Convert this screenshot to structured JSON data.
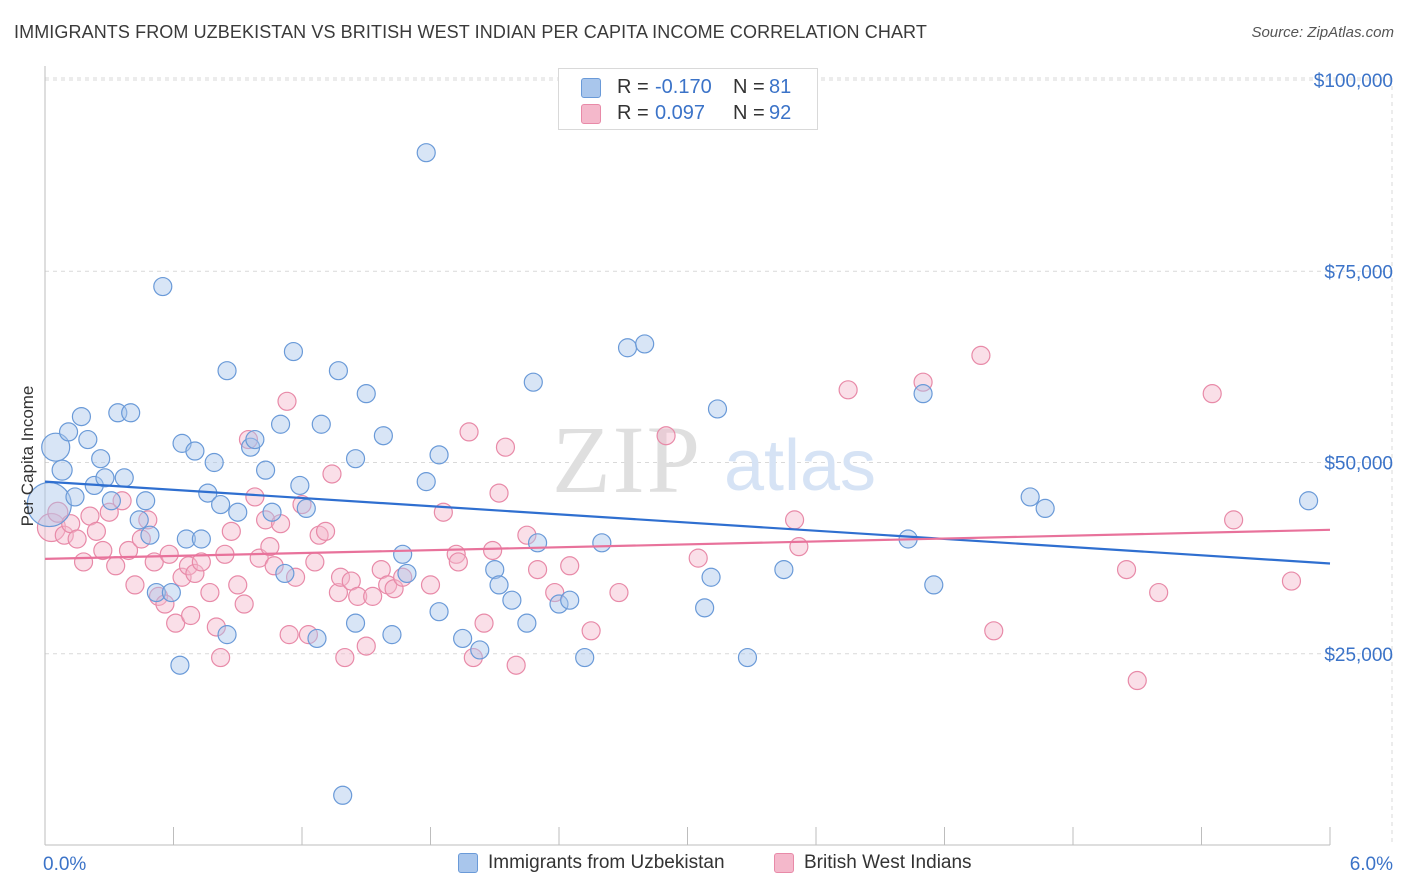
{
  "title": "IMMIGRANTS FROM UZBEKISTAN VS BRITISH WEST INDIAN PER CAPITA INCOME CORRELATION CHART",
  "source": "Source: ZipAtlas.com",
  "watermark": {
    "zip": "ZIP",
    "atlas": "atlas"
  },
  "legend": {
    "series1": {
      "r_label": "R =",
      "r_value": "-0.170",
      "n_label": "N =",
      "n_value": "81"
    },
    "series2": {
      "r_label": "R =",
      "r_value": "0.097",
      "n_label": "N =",
      "n_value": "92"
    }
  },
  "bottom_legend": {
    "series1": "Immigrants from Uzbekistan",
    "series2": "British West Indians"
  },
  "colors": {
    "blue_fill": "#a9c6ec",
    "blue_stroke": "#6a9ad8",
    "blue_line": "#2f6fd0",
    "pink_fill": "#f4b8cb",
    "pink_stroke": "#e88aa8",
    "pink_line": "#e8729b",
    "axis_text": "#3b73c8",
    "grid": "#d9d9d9"
  },
  "chart_data": {
    "type": "scatter",
    "title": "IMMIGRANTS FROM UZBEKISTAN VS BRITISH WEST INDIAN PER CAPITA INCOME CORRELATION CHART",
    "xlabel": "",
    "ylabel": "Per Capita Income",
    "xlim": [
      0,
      6
    ],
    "ylim": [
      0,
      102000
    ],
    "x_tick_labels": [
      "0.0%",
      "6.0%"
    ],
    "y_ticks": [
      25000,
      50000,
      75000,
      100000
    ],
    "y_tick_labels": [
      "$25,000",
      "$50,000",
      "$75,000",
      "$100,000"
    ],
    "series": [
      {
        "name": "Immigrants from Uzbekistan",
        "color": "blue",
        "trend": {
          "x": [
            0,
            6
          ],
          "y": [
            47500,
            36800
          ]
        },
        "points": [
          [
            0.02,
            44500,
            22
          ],
          [
            0.05,
            52000,
            14
          ],
          [
            0.08,
            49000,
            10
          ],
          [
            0.11,
            54000,
            9
          ],
          [
            0.14,
            45500,
            9
          ],
          [
            0.17,
            56000,
            9
          ],
          [
            0.2,
            53000,
            9
          ],
          [
            0.23,
            47000,
            9
          ],
          [
            0.26,
            50500,
            9
          ],
          [
            0.28,
            48000,
            9
          ],
          [
            0.31,
            45000,
            9
          ],
          [
            0.34,
            56500,
            9
          ],
          [
            0.37,
            48000,
            9
          ],
          [
            0.4,
            56500,
            9
          ],
          [
            0.44,
            42500,
            9
          ],
          [
            0.47,
            45000,
            9
          ],
          [
            0.49,
            40500,
            9
          ],
          [
            0.52,
            33000,
            9
          ],
          [
            0.55,
            73000,
            9
          ],
          [
            0.59,
            33000,
            9
          ],
          [
            0.63,
            23500,
            9
          ],
          [
            0.64,
            52500,
            9
          ],
          [
            0.66,
            40000,
            9
          ],
          [
            0.7,
            51500,
            9
          ],
          [
            0.73,
            40000,
            9
          ],
          [
            0.76,
            46000,
            9
          ],
          [
            0.79,
            50000,
            9
          ],
          [
            0.82,
            44500,
            9
          ],
          [
            0.85,
            27500,
            9
          ],
          [
            0.85,
            62000,
            9
          ],
          [
            0.9,
            43500,
            9
          ],
          [
            0.96,
            52000,
            9
          ],
          [
            0.98,
            53000,
            9
          ],
          [
            1.03,
            49000,
            9
          ],
          [
            1.06,
            43500,
            9
          ],
          [
            1.1,
            55000,
            9
          ],
          [
            1.12,
            35500,
            9
          ],
          [
            1.16,
            64500,
            9
          ],
          [
            1.19,
            47000,
            9
          ],
          [
            1.22,
            44000,
            9
          ],
          [
            1.27,
            27000,
            9
          ],
          [
            1.29,
            55000,
            9
          ],
          [
            1.37,
            62000,
            9
          ],
          [
            1.39,
            6500,
            9
          ],
          [
            1.45,
            29000,
            9
          ],
          [
            1.45,
            50500,
            9
          ],
          [
            1.5,
            59000,
            9
          ],
          [
            1.58,
            53500,
            9
          ],
          [
            1.62,
            27500,
            9
          ],
          [
            1.67,
            38000,
            9
          ],
          [
            1.69,
            35500,
            9
          ],
          [
            1.78,
            47500,
            9
          ],
          [
            1.78,
            90500,
            9
          ],
          [
            1.84,
            51000,
            9
          ],
          [
            1.84,
            30500,
            9
          ],
          [
            1.95,
            27000,
            9
          ],
          [
            2.03,
            25500,
            9
          ],
          [
            2.1,
            36000,
            9
          ],
          [
            2.12,
            34000,
            9
          ],
          [
            2.18,
            32000,
            9
          ],
          [
            2.25,
            29000,
            9
          ],
          [
            2.28,
            60500,
            9
          ],
          [
            2.3,
            39500,
            9
          ],
          [
            2.4,
            31500,
            9
          ],
          [
            2.45,
            32000,
            9
          ],
          [
            2.52,
            24500,
            9
          ],
          [
            2.6,
            39500,
            9
          ],
          [
            2.72,
            65000,
            9
          ],
          [
            2.8,
            65500,
            9
          ],
          [
            3.08,
            31000,
            9
          ],
          [
            3.11,
            35000,
            9
          ],
          [
            3.14,
            57000,
            9
          ],
          [
            3.28,
            24500,
            9
          ],
          [
            3.45,
            36000,
            9
          ],
          [
            4.03,
            40000,
            9
          ],
          [
            4.1,
            59000,
            9
          ],
          [
            4.15,
            34000,
            9
          ],
          [
            4.6,
            45500,
            9
          ],
          [
            4.67,
            44000,
            9
          ],
          [
            5.9,
            45000,
            9
          ]
        ]
      },
      {
        "name": "British West Indians",
        "color": "pink",
        "trend": {
          "x": [
            0,
            6
          ],
          "y": [
            37400,
            41200
          ]
        },
        "points": [
          [
            0.03,
            41500,
            14
          ],
          [
            0.06,
            43500,
            10
          ],
          [
            0.09,
            40500,
            9
          ],
          [
            0.12,
            42000,
            9
          ],
          [
            0.15,
            40000,
            9
          ],
          [
            0.18,
            37000,
            9
          ],
          [
            0.21,
            43000,
            9
          ],
          [
            0.24,
            41000,
            9
          ],
          [
            0.27,
            38500,
            9
          ],
          [
            0.3,
            43500,
            9
          ],
          [
            0.33,
            36500,
            9
          ],
          [
            0.36,
            45000,
            9
          ],
          [
            0.39,
            38500,
            9
          ],
          [
            0.42,
            34000,
            9
          ],
          [
            0.45,
            40000,
            9
          ],
          [
            0.48,
            42500,
            9
          ],
          [
            0.51,
            37000,
            9
          ],
          [
            0.53,
            32500,
            9
          ],
          [
            0.56,
            31500,
            9
          ],
          [
            0.58,
            38000,
            9
          ],
          [
            0.61,
            29000,
            9
          ],
          [
            0.64,
            35000,
            9
          ],
          [
            0.67,
            36500,
            9
          ],
          [
            0.68,
            30000,
            9
          ],
          [
            0.7,
            35500,
            9
          ],
          [
            0.73,
            37000,
            9
          ],
          [
            0.77,
            33000,
            9
          ],
          [
            0.8,
            28500,
            9
          ],
          [
            0.82,
            24500,
            9
          ],
          [
            0.84,
            38000,
            9
          ],
          [
            0.87,
            41000,
            9
          ],
          [
            0.9,
            34000,
            9
          ],
          [
            0.93,
            31500,
            9
          ],
          [
            0.95,
            53000,
            9
          ],
          [
            0.98,
            45500,
            9
          ],
          [
            1.0,
            37500,
            9
          ],
          [
            1.03,
            42500,
            9
          ],
          [
            1.05,
            39000,
            9
          ],
          [
            1.07,
            36500,
            9
          ],
          [
            1.1,
            42000,
            9
          ],
          [
            1.13,
            58000,
            9
          ],
          [
            1.14,
            27500,
            9
          ],
          [
            1.17,
            35000,
            9
          ],
          [
            1.2,
            44500,
            9
          ],
          [
            1.23,
            27500,
            9
          ],
          [
            1.26,
            37000,
            9
          ],
          [
            1.28,
            40500,
            9
          ],
          [
            1.31,
            41000,
            9
          ],
          [
            1.34,
            48500,
            9
          ],
          [
            1.37,
            33000,
            9
          ],
          [
            1.38,
            35000,
            9
          ],
          [
            1.4,
            24500,
            9
          ],
          [
            1.43,
            34500,
            9
          ],
          [
            1.46,
            32500,
            9
          ],
          [
            1.5,
            26000,
            9
          ],
          [
            1.53,
            32500,
            9
          ],
          [
            1.57,
            36000,
            9
          ],
          [
            1.6,
            34000,
            9
          ],
          [
            1.63,
            33500,
            9
          ],
          [
            1.67,
            35000,
            9
          ],
          [
            1.8,
            34000,
            9
          ],
          [
            1.86,
            43500,
            9
          ],
          [
            1.92,
            38000,
            9
          ],
          [
            1.93,
            37000,
            9
          ],
          [
            1.98,
            54000,
            9
          ],
          [
            2.0,
            24500,
            9
          ],
          [
            2.05,
            29000,
            9
          ],
          [
            2.09,
            38500,
            9
          ],
          [
            2.12,
            46000,
            9
          ],
          [
            2.15,
            52000,
            9
          ],
          [
            2.2,
            23500,
            9
          ],
          [
            2.25,
            40500,
            9
          ],
          [
            2.3,
            36000,
            9
          ],
          [
            2.38,
            33000,
            9
          ],
          [
            2.45,
            36500,
            9
          ],
          [
            2.55,
            28000,
            9
          ],
          [
            2.68,
            33000,
            9
          ],
          [
            2.9,
            53500,
            9
          ],
          [
            3.05,
            37500,
            9
          ],
          [
            3.5,
            42500,
            9
          ],
          [
            3.52,
            39000,
            9
          ],
          [
            3.75,
            59500,
            9
          ],
          [
            4.1,
            60500,
            9
          ],
          [
            4.37,
            64000,
            9
          ],
          [
            4.43,
            28000,
            9
          ],
          [
            5.05,
            36000,
            9
          ],
          [
            5.1,
            21500,
            9
          ],
          [
            5.2,
            33000,
            9
          ],
          [
            5.45,
            59000,
            9
          ],
          [
            5.55,
            42500,
            9
          ],
          [
            5.82,
            34500,
            9
          ]
        ]
      }
    ]
  }
}
